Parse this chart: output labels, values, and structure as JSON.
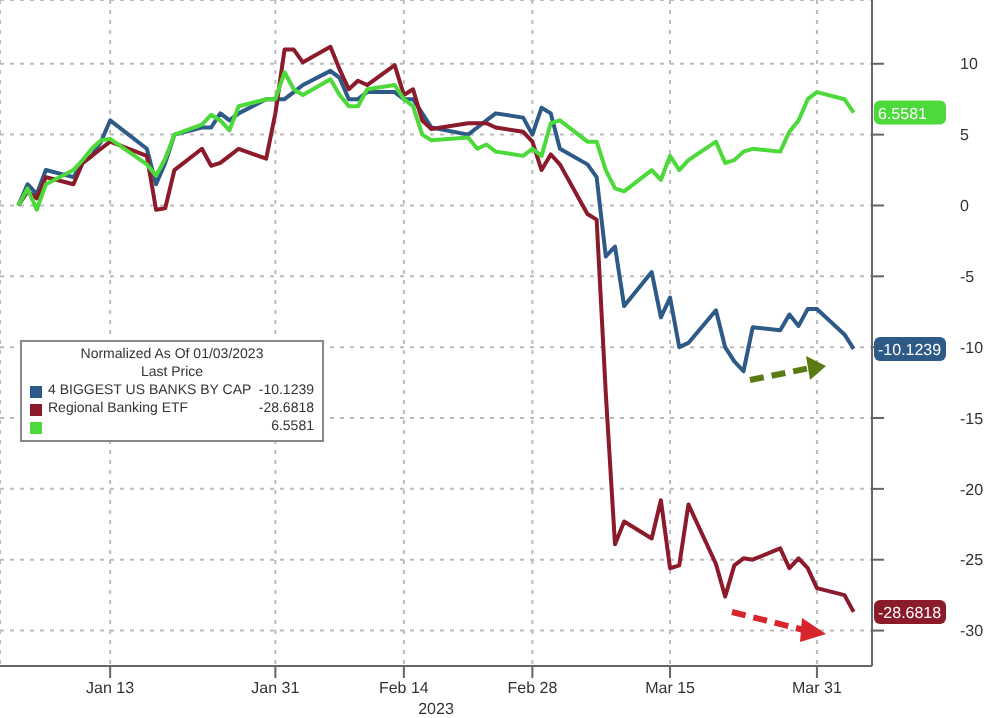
{
  "chart_data": {
    "type": "line",
    "xlabel": "2023",
    "legend_title": "Normalized As Of 01/03/2023",
    "annotations": [
      "Last Price"
    ],
    "x": [
      "2023-01-03",
      "2023-01-04",
      "2023-01-05",
      "2023-01-06",
      "2023-01-09",
      "2023-01-10",
      "2023-01-11",
      "2023-01-12",
      "2023-01-13",
      "2023-01-17",
      "2023-01-18",
      "2023-01-19",
      "2023-01-20",
      "2023-01-23",
      "2023-01-24",
      "2023-01-25",
      "2023-01-26",
      "2023-01-27",
      "2023-01-30",
      "2023-01-31",
      "2023-02-01",
      "2023-02-02",
      "2023-02-03",
      "2023-02-06",
      "2023-02-07",
      "2023-02-08",
      "2023-02-09",
      "2023-02-10",
      "2023-02-13",
      "2023-02-14",
      "2023-02-15",
      "2023-02-16",
      "2023-02-17",
      "2023-02-21",
      "2023-02-22",
      "2023-02-23",
      "2023-02-24",
      "2023-02-27",
      "2023-02-28",
      "2023-03-01",
      "2023-03-02",
      "2023-03-03",
      "2023-03-06",
      "2023-03-07",
      "2023-03-08",
      "2023-03-09",
      "2023-03-10",
      "2023-03-13",
      "2023-03-14",
      "2023-03-15",
      "2023-03-16",
      "2023-03-17",
      "2023-03-20",
      "2023-03-21",
      "2023-03-22",
      "2023-03-23",
      "2023-03-24",
      "2023-03-27",
      "2023-03-28",
      "2023-03-29",
      "2023-03-30",
      "2023-03-31",
      "2023-04-03",
      "2023-04-04"
    ],
    "series": [
      {
        "name": "4 BIGGEST US BANKS BY CAP",
        "color": "#2e5a87",
        "values": [
          0,
          1.5,
          0.8,
          2.5,
          2,
          3,
          3.5,
          4.5,
          6,
          4,
          1.5,
          3,
          5,
          5.5,
          5.5,
          6.5,
          6,
          6.5,
          7.5,
          7.5,
          7.5,
          8,
          8.5,
          9.5,
          9,
          7.5,
          7.5,
          8,
          8,
          7.5,
          7.5,
          6.5,
          5.5,
          5,
          5.5,
          6,
          6.5,
          6.2,
          5,
          6.9,
          6.5,
          4,
          2.9,
          2,
          -3.6,
          -2.9,
          -7.1,
          -4.7,
          -7.9,
          -6.5,
          -10,
          -9.7,
          -7.4,
          -10,
          -11,
          -11.7,
          -8.6,
          -8.8,
          -7.7,
          -8.5,
          -7.3,
          -7.3,
          -9.1,
          -10.1239
        ],
        "value_labels": [
          null,
          null,
          null,
          null,
          null,
          null,
          null,
          null,
          null,
          null,
          null,
          null,
          null,
          null,
          null,
          null,
          null,
          null,
          null,
          null,
          null,
          null,
          null,
          null,
          null,
          null,
          null,
          null,
          null,
          null,
          null,
          null,
          null,
          null,
          null,
          null,
          null,
          null,
          null,
          null,
          null,
          null,
          null,
          null,
          null,
          null,
          null,
          null,
          null,
          null,
          null,
          null,
          null,
          null,
          null,
          null,
          null,
          null,
          null,
          null,
          null,
          null,
          null,
          "-10.1239"
        ]
      },
      {
        "name": "Regional Banking ETF",
        "color": "#8b1a2b",
        "values": [
          0,
          1,
          0.5,
          2,
          1.5,
          3,
          3.5,
          4,
          4.5,
          3.5,
          -0.3,
          -0.2,
          2.5,
          4,
          2.8,
          3,
          3.5,
          4,
          3.3,
          6.5,
          11,
          11,
          10.1,
          11.2,
          9.6,
          8.2,
          8.8,
          8.5,
          9.9,
          7.8,
          8.2,
          6,
          5.4,
          5.8,
          5.8,
          5.8,
          5.5,
          5.2,
          4.5,
          2.5,
          3.6,
          2.9,
          -0.6,
          -1,
          -13.3,
          -23.9,
          -22.3,
          -23.5,
          -20.8,
          -25.6,
          -25.4,
          -21.1,
          -25.3,
          -27.6,
          -25.4,
          -24.9,
          -25,
          -24.2,
          -25.6,
          -24.9,
          -25.6,
          -27,
          -27.5,
          -28.6818
        ],
        "value_labels": [
          null,
          null,
          null,
          null,
          null,
          null,
          null,
          null,
          null,
          null,
          null,
          null,
          null,
          null,
          null,
          null,
          null,
          null,
          null,
          null,
          null,
          null,
          null,
          null,
          null,
          null,
          null,
          null,
          null,
          null,
          null,
          null,
          null,
          null,
          null,
          null,
          null,
          null,
          null,
          null,
          null,
          null,
          null,
          null,
          null,
          null,
          null,
          null,
          null,
          null,
          null,
          null,
          null,
          null,
          null,
          null,
          null,
          null,
          null,
          null,
          null,
          null,
          null,
          "-28.6818"
        ]
      },
      {
        "color": "#4cd93a",
        "values": [
          0,
          1.2,
          -0.3,
          1.5,
          2.5,
          3.2,
          4,
          4.6,
          4.7,
          2.9,
          2.1,
          3.3,
          5,
          5.7,
          6.4,
          6,
          5.3,
          7,
          7.5,
          7.5,
          9.4,
          8.2,
          7.8,
          8.9,
          7.8,
          7,
          7,
          8.2,
          8.5,
          7.5,
          7,
          5,
          4.6,
          4.8,
          4,
          4.3,
          3.8,
          3.5,
          4,
          3.5,
          5.8,
          6,
          4.5,
          4.5,
          2.5,
          1.2,
          1,
          2.5,
          1.8,
          3.5,
          2.5,
          3.2,
          4.5,
          3,
          3.2,
          3.8,
          4,
          3.8,
          5.2,
          6,
          7.5,
          8,
          7.5,
          6.5581
        ],
        "value_labels": [
          null,
          null,
          null,
          null,
          null,
          null,
          null,
          null,
          null,
          null,
          null,
          null,
          null,
          null,
          null,
          null,
          null,
          null,
          null,
          null,
          null,
          null,
          null,
          null,
          null,
          null,
          null,
          null,
          null,
          null,
          null,
          null,
          null,
          null,
          null,
          null,
          null,
          null,
          null,
          null,
          null,
          null,
          null,
          null,
          null,
          null,
          null,
          null,
          null,
          null,
          null,
          null,
          null,
          null,
          null,
          null,
          null,
          null,
          null,
          null,
          null,
          null,
          null,
          "6.5581"
        ]
      }
    ],
    "xlim": [
      "2023-01-01",
      "2023-04-06"
    ],
    "xticks": [
      {
        "value": "2023-01-13",
        "label": "Jan 13"
      },
      {
        "value": "2023-01-31",
        "label": "Jan 31"
      },
      {
        "value": "2023-02-14",
        "label": "Feb 14"
      },
      {
        "value": "2023-02-28",
        "label": "Feb 28"
      },
      {
        "value": "2023-03-15",
        "label": "Mar 15"
      },
      {
        "value": "2023-03-31",
        "label": "Mar 31"
      }
    ],
    "ylim": [
      -32.5,
      14.5
    ],
    "yticks": [
      10,
      5,
      0,
      -5,
      -10,
      -15,
      -20,
      -25,
      -30
    ],
    "grid": true,
    "legend": "center left",
    "marker": "none",
    "line_style": "solid"
  }
}
